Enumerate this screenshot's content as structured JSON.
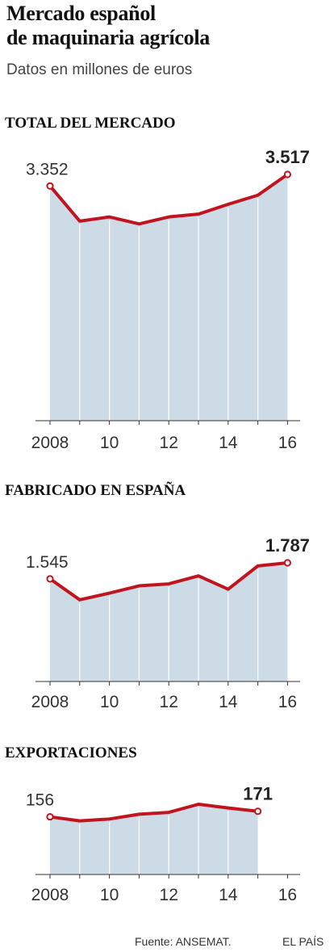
{
  "header": {
    "title_line1": "Mercado español",
    "title_line2": "de maquinaria agrícola",
    "subtitle": "Datos en millones de euros"
  },
  "colors": {
    "line": "#c0141f",
    "area": "#cddbe7",
    "gridline": "#ffffff",
    "axis": "#333333"
  },
  "chart_data": [
    {
      "type": "area",
      "title": "TOTAL DEL MERCADO",
      "x": [
        2008,
        2009,
        2010,
        2011,
        2012,
        2013,
        2014,
        2015,
        2016
      ],
      "x_tick_labels": [
        "2008",
        "10",
        "12",
        "14",
        "16"
      ],
      "x_tick_values": [
        2008,
        2010,
        2012,
        2014,
        2016
      ],
      "series": [
        {
          "values": [
            3352,
            2850,
            2910,
            2810,
            2910,
            2950,
            3090,
            3220,
            3517
          ]
        }
      ],
      "ylim": [
        0,
        3517
      ],
      "labels": {
        "first": "3.352",
        "last": "3.517"
      }
    },
    {
      "type": "area",
      "title": "FABRICADO EN ESPAÑA",
      "x": [
        2008,
        2009,
        2010,
        2011,
        2012,
        2013,
        2014,
        2015,
        2016
      ],
      "x_tick_labels": [
        "2008",
        "10",
        "12",
        "14",
        "16"
      ],
      "x_tick_values": [
        2008,
        2010,
        2012,
        2014,
        2016
      ],
      "series": [
        {
          "values": [
            1545,
            1230,
            1330,
            1440,
            1470,
            1590,
            1390,
            1740,
            1787
          ]
        }
      ],
      "ylim": [
        0,
        1787
      ],
      "labels": {
        "first": "1.545",
        "last": "1.787"
      }
    },
    {
      "type": "area",
      "title": "EXPORTACIONES",
      "x": [
        2008,
        2009,
        2010,
        2011,
        2012,
        2013,
        2014,
        2015
      ],
      "x_tick_labels": [
        "2008",
        "10",
        "12",
        "14",
        "16"
      ],
      "x_tick_values": [
        2008,
        2010,
        2012,
        2014,
        2016
      ],
      "series": [
        {
          "values": [
            156,
            145,
            150,
            163,
            168,
            190,
            180,
            171
          ]
        }
      ],
      "ylim": [
        0,
        190
      ],
      "labels": {
        "first": "156",
        "last": "171"
      }
    }
  ],
  "footer": {
    "source": "Fuente: ANSEMAT.",
    "brand": "EL PAÍS"
  }
}
